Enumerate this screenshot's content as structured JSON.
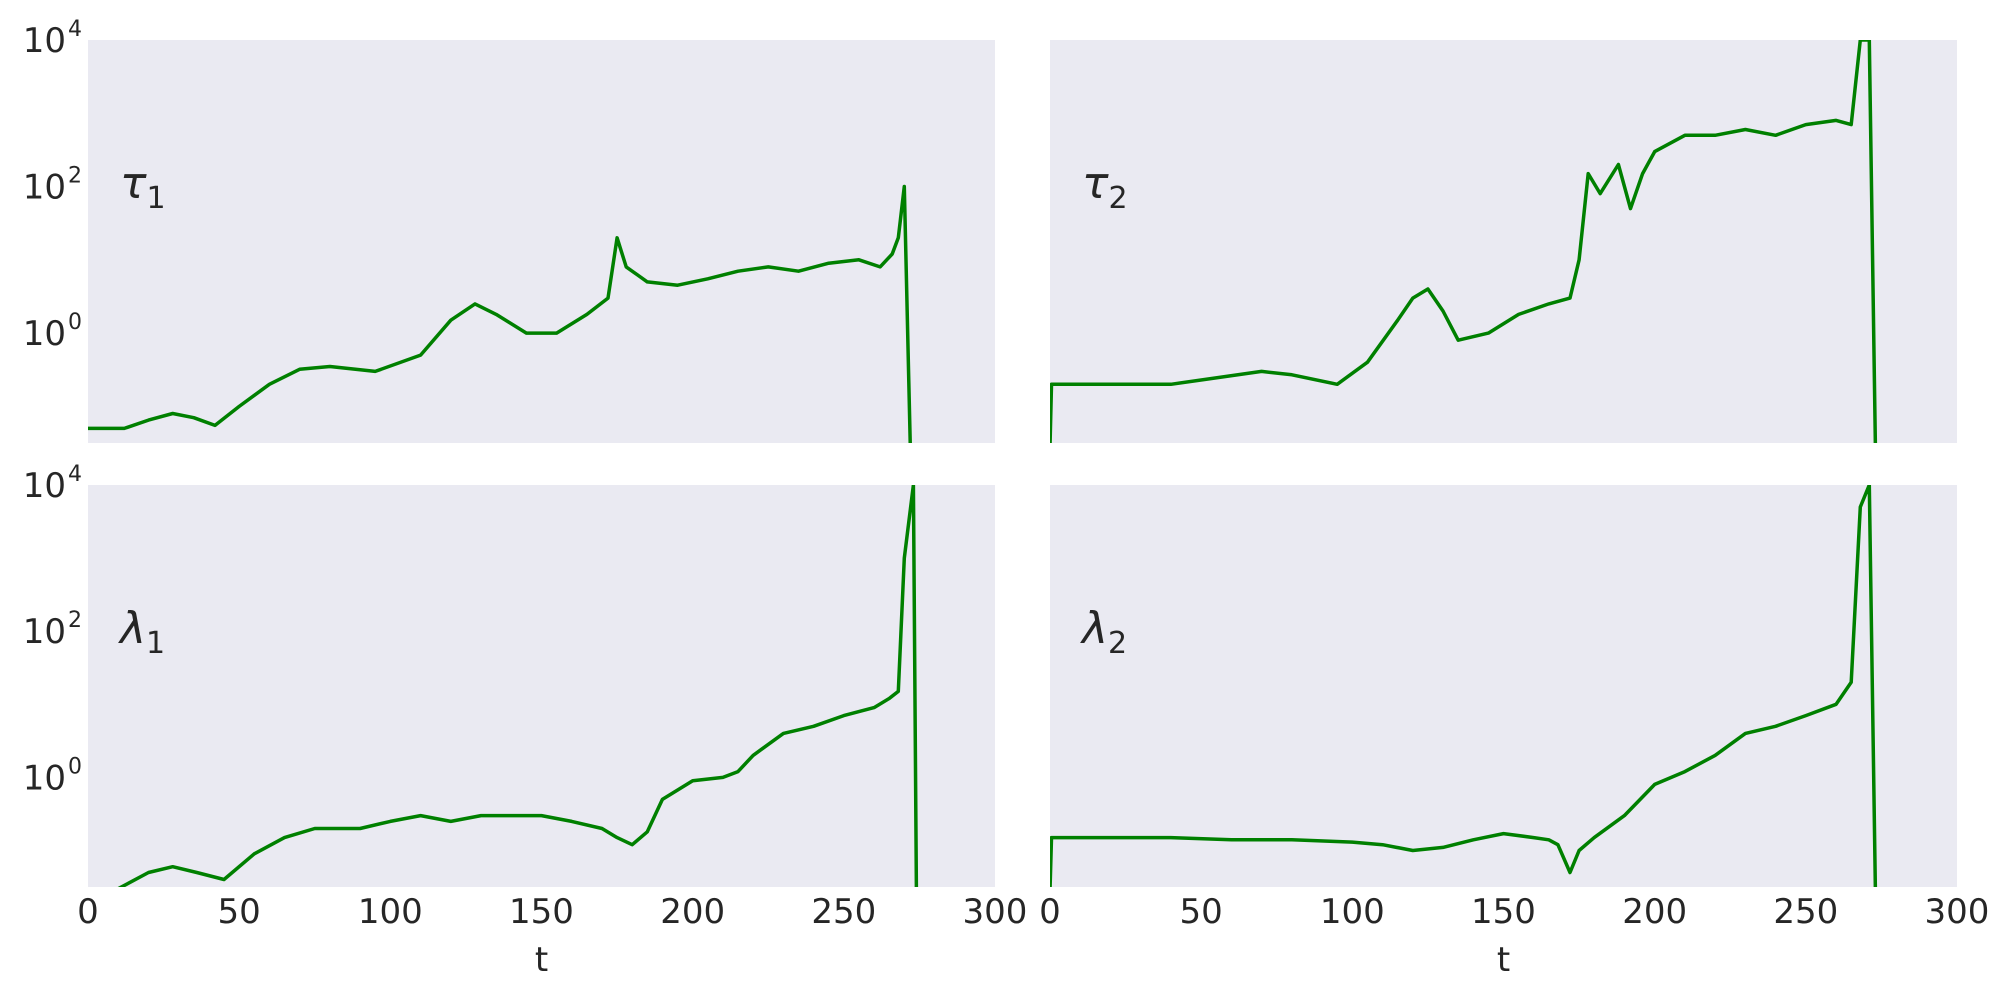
{
  "chart_data": [
    {
      "type": "line",
      "panel_label": {
        "symbol": "τ",
        "subscript": "1"
      },
      "yscale": "log",
      "ylim_exp": [
        -1.5,
        4
      ],
      "ytick_exps": [
        0,
        2,
        4
      ],
      "xlim": [
        0,
        300
      ],
      "xticks_shown": false,
      "grid": false,
      "series_color": "#008000",
      "points": [
        [
          0,
          0.05
        ],
        [
          12,
          0.05
        ],
        [
          20,
          0.065
        ],
        [
          28,
          0.08
        ],
        [
          35,
          0.07
        ],
        [
          42,
          0.055
        ],
        [
          50,
          0.1
        ],
        [
          60,
          0.2
        ],
        [
          70,
          0.32
        ],
        [
          80,
          0.35
        ],
        [
          95,
          0.3
        ],
        [
          110,
          0.5
        ],
        [
          120,
          1.5
        ],
        [
          128,
          2.5
        ],
        [
          135,
          1.8
        ],
        [
          145,
          1
        ],
        [
          155,
          1
        ],
        [
          165,
          1.8
        ],
        [
          172,
          3
        ],
        [
          175,
          20
        ],
        [
          178,
          8
        ],
        [
          185,
          5
        ],
        [
          195,
          4.5
        ],
        [
          205,
          5.5
        ],
        [
          215,
          7
        ],
        [
          225,
          8
        ],
        [
          235,
          7
        ],
        [
          245,
          9
        ],
        [
          255,
          10
        ],
        [
          262,
          8
        ],
        [
          266,
          12
        ],
        [
          268,
          20
        ],
        [
          270,
          100
        ],
        [
          272,
          0.0001
        ]
      ]
    },
    {
      "type": "line",
      "panel_label": {
        "symbol": "τ",
        "subscript": "2"
      },
      "yscale": "log",
      "ylim_exp": [
        -1.5,
        4
      ],
      "ytick_exps": [
        0,
        2,
        4
      ],
      "xlim": [
        0,
        300
      ],
      "xticks_shown": false,
      "grid": false,
      "series_color": "#008000",
      "points": [
        [
          0,
          0.0001
        ],
        [
          0.5,
          0.2
        ],
        [
          40,
          0.2
        ],
        [
          70,
          0.3
        ],
        [
          80,
          0.27
        ],
        [
          95,
          0.2
        ],
        [
          105,
          0.4
        ],
        [
          115,
          1.5
        ],
        [
          120,
          3
        ],
        [
          125,
          4
        ],
        [
          130,
          2
        ],
        [
          135,
          0.8
        ],
        [
          145,
          1
        ],
        [
          155,
          1.8
        ],
        [
          165,
          2.5
        ],
        [
          172,
          3
        ],
        [
          175,
          10
        ],
        [
          178,
          150
        ],
        [
          182,
          80
        ],
        [
          188,
          200
        ],
        [
          192,
          50
        ],
        [
          196,
          150
        ],
        [
          200,
          300
        ],
        [
          210,
          500
        ],
        [
          220,
          500
        ],
        [
          230,
          600
        ],
        [
          240,
          500
        ],
        [
          250,
          700
        ],
        [
          260,
          800
        ],
        [
          265,
          700
        ],
        [
          268,
          10000
        ],
        [
          271,
          10000
        ],
        [
          273,
          0.0001
        ]
      ]
    },
    {
      "type": "line",
      "panel_label": {
        "symbol": "λ",
        "subscript": "1"
      },
      "yscale": "log",
      "ylim_exp": [
        -1.5,
        4
      ],
      "ytick_exps": [
        0,
        2,
        4
      ],
      "xlim": [
        0,
        300
      ],
      "xticks": [
        0,
        50,
        100,
        150,
        200,
        250,
        300
      ],
      "xlabel": "t",
      "grid": false,
      "series_color": "#008000",
      "points": [
        [
          0,
          0.03
        ],
        [
          10,
          0.03
        ],
        [
          20,
          0.05
        ],
        [
          28,
          0.06
        ],
        [
          36,
          0.05
        ],
        [
          45,
          0.04
        ],
        [
          55,
          0.09
        ],
        [
          65,
          0.15
        ],
        [
          75,
          0.2
        ],
        [
          90,
          0.2
        ],
        [
          100,
          0.25
        ],
        [
          110,
          0.3
        ],
        [
          120,
          0.25
        ],
        [
          130,
          0.3
        ],
        [
          140,
          0.3
        ],
        [
          150,
          0.3
        ],
        [
          160,
          0.25
        ],
        [
          170,
          0.2
        ],
        [
          175,
          0.15
        ],
        [
          180,
          0.12
        ],
        [
          185,
          0.18
        ],
        [
          190,
          0.5
        ],
        [
          200,
          0.9
        ],
        [
          210,
          1
        ],
        [
          215,
          1.2
        ],
        [
          220,
          2
        ],
        [
          230,
          4
        ],
        [
          240,
          5
        ],
        [
          250,
          7
        ],
        [
          260,
          9
        ],
        [
          265,
          12
        ],
        [
          268,
          15
        ],
        [
          270,
          1000
        ],
        [
          273,
          10000
        ],
        [
          274,
          0.0001
        ]
      ]
    },
    {
      "type": "line",
      "panel_label": {
        "symbol": "λ",
        "subscript": "2"
      },
      "yscale": "log",
      "ylim_exp": [
        -1.5,
        4
      ],
      "ytick_exps": [
        0,
        2,
        4
      ],
      "xlim": [
        0,
        300
      ],
      "xticks": [
        0,
        50,
        100,
        150,
        200,
        250,
        300
      ],
      "xlabel": "t",
      "grid": false,
      "series_color": "#008000",
      "points": [
        [
          0,
          0.0001
        ],
        [
          0.5,
          0.15
        ],
        [
          40,
          0.15
        ],
        [
          60,
          0.14
        ],
        [
          80,
          0.14
        ],
        [
          100,
          0.13
        ],
        [
          110,
          0.12
        ],
        [
          120,
          0.1
        ],
        [
          130,
          0.11
        ],
        [
          140,
          0.14
        ],
        [
          150,
          0.17
        ],
        [
          160,
          0.15
        ],
        [
          165,
          0.14
        ],
        [
          168,
          0.12
        ],
        [
          172,
          0.05
        ],
        [
          175,
          0.1
        ],
        [
          180,
          0.15
        ],
        [
          190,
          0.3
        ],
        [
          200,
          0.8
        ],
        [
          210,
          1.2
        ],
        [
          220,
          2
        ],
        [
          230,
          4
        ],
        [
          240,
          5
        ],
        [
          250,
          7
        ],
        [
          260,
          10
        ],
        [
          265,
          20
        ],
        [
          268,
          5000
        ],
        [
          271,
          10000
        ],
        [
          273,
          0.0001
        ]
      ]
    }
  ]
}
